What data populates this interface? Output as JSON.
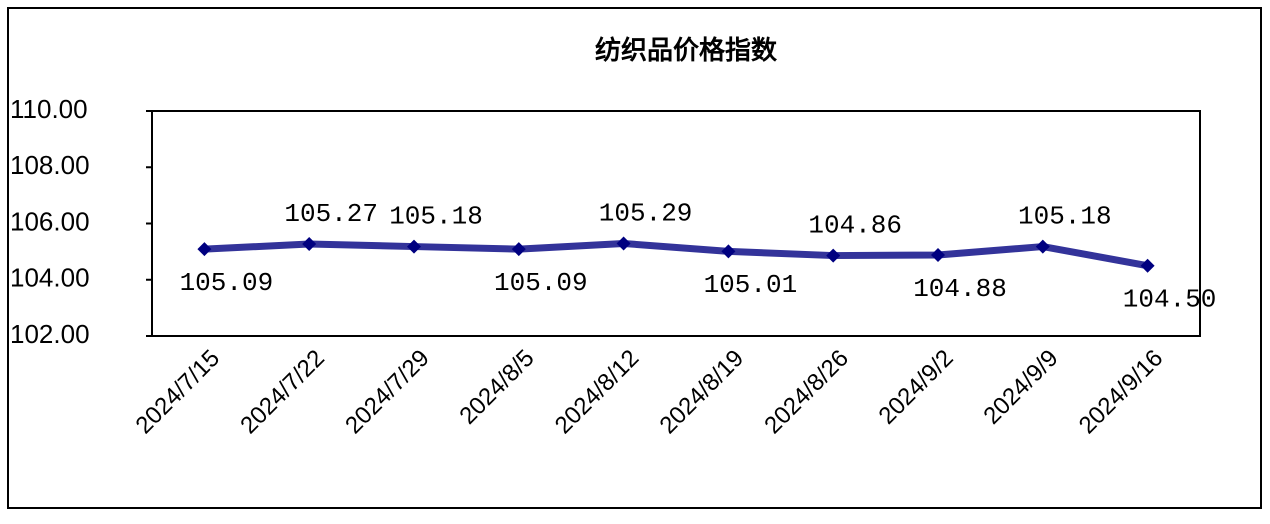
{
  "chart_data": {
    "type": "line",
    "title": "纺织品价格指数",
    "categories": [
      "2024/7/15",
      "2024/7/22",
      "2024/7/29",
      "2024/8/5",
      "2024/8/12",
      "2024/8/19",
      "2024/8/26",
      "2024/9/2",
      "2024/9/9",
      "2024/9/16"
    ],
    "series": [
      {
        "color": "#33339a",
        "values": [
          105.09,
          105.27,
          105.18,
          105.09,
          105.29,
          105.01,
          104.86,
          104.88,
          105.18,
          104.5
        ],
        "value_labels": [
          "105.09",
          "105.27",
          "105.18",
          "105.09",
          "105.29",
          "105.01",
          "104.86",
          "104.88",
          "105.18",
          "104.50"
        ]
      }
    ],
    "ylim": [
      102,
      110
    ],
    "yticks": [
      {
        "value": 102,
        "label": "102.00"
      },
      {
        "value": 104,
        "label": "104.00"
      },
      {
        "value": 106,
        "label": "106.00"
      },
      {
        "value": 108,
        "label": "108.00"
      },
      {
        "value": 110,
        "label": "110.00"
      }
    ],
    "grid": false
  }
}
